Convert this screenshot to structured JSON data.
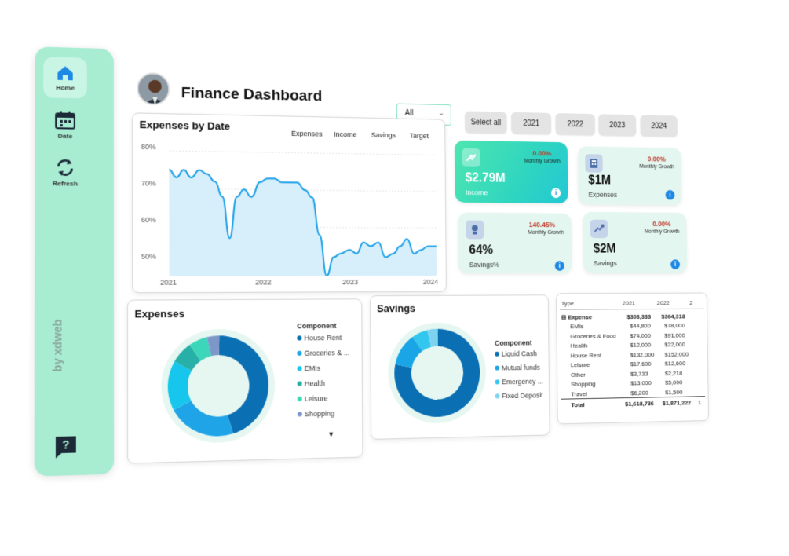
{
  "sidebar": {
    "items": [
      {
        "label": "Home",
        "icon": "home-icon"
      },
      {
        "label": "Date",
        "icon": "calendar-icon"
      },
      {
        "label": "Refresh",
        "icon": "refresh-icon"
      }
    ],
    "brand": "by xdweb",
    "help_icon": "help-icon"
  },
  "header": {
    "title": "Finance Dashboard",
    "filter": {
      "selected": "All"
    },
    "year_buttons": [
      "Select all",
      "2021",
      "2022",
      "2023",
      "2024"
    ]
  },
  "line_chart": {
    "title": "Expenses by Date",
    "tabs": [
      "Expenses",
      "Income",
      "Savings",
      "Target"
    ],
    "chart_data": {
      "type": "area",
      "x_ticks": [
        "2021",
        "2022",
        "2023",
        "2024"
      ],
      "y_ticks": [
        "80%",
        "70%",
        "60%",
        "50%"
      ],
      "ylim": [
        47,
        82
      ],
      "x": [
        2021.0,
        2021.08,
        2021.16,
        2021.24,
        2021.33,
        2021.41,
        2021.5,
        2021.58,
        2021.66,
        2021.74,
        2021.82,
        2021.9,
        2022.0,
        2022.08,
        2022.16,
        2022.24,
        2022.33,
        2022.41,
        2022.5,
        2022.58,
        2022.66,
        2022.74,
        2022.82,
        2022.9,
        2023.0,
        2023.08,
        2023.16,
        2023.24,
        2023.33,
        2023.41,
        2023.5,
        2023.58,
        2023.66,
        2023.74,
        2023.82,
        2023.9,
        2024.0
      ],
      "values": [
        75,
        73,
        75,
        73,
        75,
        74,
        72,
        68,
        57,
        68,
        70,
        68,
        72,
        73,
        73,
        72,
        72,
        72,
        70,
        68,
        58,
        47,
        52,
        53,
        54,
        53,
        56,
        55,
        56,
        52,
        53,
        55,
        57,
        53,
        54,
        55,
        55
      ]
    }
  },
  "kpis": [
    {
      "value": "$2.79M",
      "label": "Income",
      "pct": "0.00%",
      "growth": "Monthly Growth",
      "icon": "income-icon"
    },
    {
      "value": "$1M",
      "label": "Expenses",
      "pct": "0.00%",
      "growth": "Monthly Growth",
      "icon": "expenses-icon"
    },
    {
      "value": "64%",
      "label": "Savings%",
      "pct": "140.45%",
      "growth": "Monthly Growth",
      "icon": "savings-percent-icon"
    },
    {
      "value": "$2M",
      "label": "Savings",
      "pct": "0.00%",
      "growth": "Monthly Growth",
      "icon": "savings-icon"
    }
  ],
  "expenses_donut": {
    "title": "Expenses",
    "legend_title": "Component",
    "chart_data": {
      "type": "pie",
      "labels": [
        "House Rent",
        "Groceries & ...",
        "EMIs",
        "Health",
        "Leisure",
        "Shopping"
      ],
      "values": [
        45,
        22,
        16,
        7,
        6,
        4
      ],
      "colors": [
        "#0a6fb3",
        "#20a4e8",
        "#16c6ec",
        "#27b0a8",
        "#3cd6bb",
        "#7d97c9"
      ]
    }
  },
  "savings_donut": {
    "title": "Savings",
    "legend_title": "Component",
    "chart_data": {
      "type": "pie",
      "labels": [
        "Liquid Cash",
        "Mutual funds",
        "Emergency ...",
        "Fixed Deposit"
      ],
      "values": [
        78,
        12,
        6,
        4
      ],
      "colors": [
        "#0a6fb3",
        "#1aa6e6",
        "#33c6ee",
        "#7ed3f0"
      ]
    }
  },
  "matrix": {
    "headers": [
      "Type",
      "2021",
      "2022",
      "2"
    ],
    "group": "Expense",
    "group_vals": [
      "$303,333",
      "$364,318"
    ],
    "rows": [
      {
        "label": "EMIs",
        "v1": "$44,800",
        "v2": "$78,000"
      },
      {
        "label": "Groceries & Food",
        "v1": "$74,000",
        "v2": "$91,000"
      },
      {
        "label": "Health",
        "v1": "$12,000",
        "v2": "$22,000"
      },
      {
        "label": "House Rent",
        "v1": "$132,000",
        "v2": "$152,000"
      },
      {
        "label": "Leisure",
        "v1": "$17,600",
        "v2": "$12,600"
      },
      {
        "label": "Other",
        "v1": "$3,733",
        "v2": "$2,218"
      },
      {
        "label": "Shopping",
        "v1": "$13,000",
        "v2": "$5,000"
      },
      {
        "label": "Travel",
        "v1": "$6,200",
        "v2": "$1,500"
      }
    ],
    "total_label": "Total",
    "totals": [
      "$1,618,736",
      "$1,871,222",
      "1"
    ]
  }
}
